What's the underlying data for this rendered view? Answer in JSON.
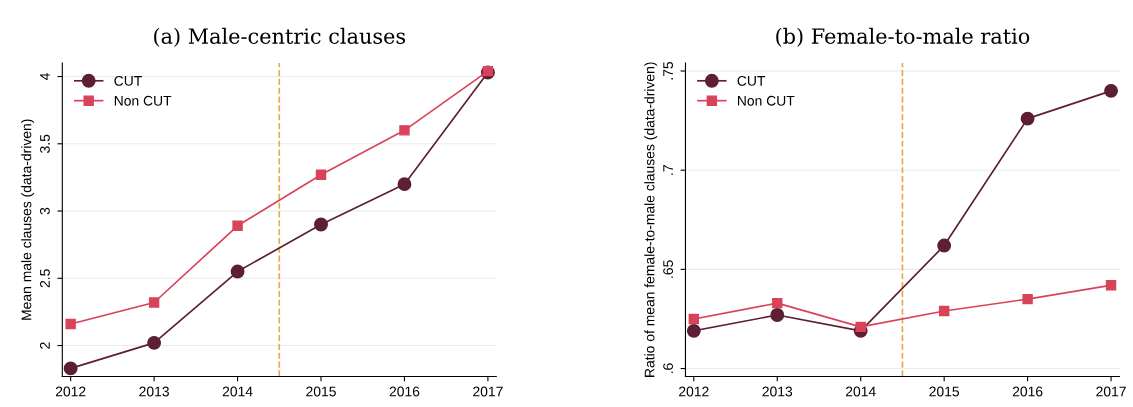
{
  "chart_data": [
    {
      "type": "line",
      "title": "(a) Male-centric clauses",
      "ylabel": "Mean male clauses (data-driven)",
      "x": [
        2012,
        2013,
        2014,
        2015,
        2016,
        2017
      ],
      "series": [
        {
          "name": "CUT",
          "color": "#5c1f33",
          "marker": "circle",
          "values": [
            1.83,
            2.02,
            2.55,
            2.9,
            3.2,
            4.03
          ]
        },
        {
          "name": "Non CUT",
          "color": "#d9435a",
          "marker": "square",
          "values": [
            2.16,
            2.32,
            2.89,
            3.27,
            3.6,
            4.04
          ]
        }
      ],
      "xlim": [
        2011.9,
        2017.1
      ],
      "xticks": [
        2012,
        2013,
        2014,
        2015,
        2016,
        2017
      ],
      "ylim": [
        1.77,
        4.1
      ],
      "yticks": [
        2,
        2.5,
        3,
        3.5,
        4
      ],
      "ref_lines": [
        {
          "axis": "x",
          "value": 2014.5,
          "label": null,
          "color": "#e8a94f",
          "line_style": "dashed"
        }
      ],
      "grid": "y",
      "legend": "top left",
      "line_style": "solid"
    },
    {
      "type": "line",
      "title": "(b) Female-to-male ratio",
      "ylabel": "Ratio of mean female-to-male clauses (data-driven)",
      "x": [
        2012,
        2013,
        2014,
        2015,
        2016,
        2017
      ],
      "series": [
        {
          "name": "CUT",
          "color": "#5c1f33",
          "marker": "circle",
          "values": [
            0.619,
            0.627,
            0.619,
            0.662,
            0.726,
            0.74
          ]
        },
        {
          "name": "Non CUT",
          "color": "#d9435a",
          "marker": "square",
          "values": [
            0.625,
            0.633,
            0.621,
            0.629,
            0.635,
            0.642
          ]
        }
      ],
      "xlim": [
        2011.9,
        2017.1
      ],
      "xticks": [
        2012,
        2013,
        2014,
        2015,
        2016,
        2017
      ],
      "ylim": [
        0.596,
        0.754
      ],
      "yticks": [
        {
          "value": 0.6,
          "label": ".6"
        },
        {
          "value": 0.65,
          "label": ".65"
        },
        {
          "value": 0.7,
          "label": ".7"
        },
        {
          "value": 0.75,
          "label": ".75"
        }
      ],
      "ref_lines": [
        {
          "axis": "x",
          "value": 2014.5,
          "label": null,
          "color": "#e8a94f",
          "line_style": "dashed"
        }
      ],
      "grid": "y",
      "legend": "top left",
      "line_style": "solid"
    }
  ]
}
